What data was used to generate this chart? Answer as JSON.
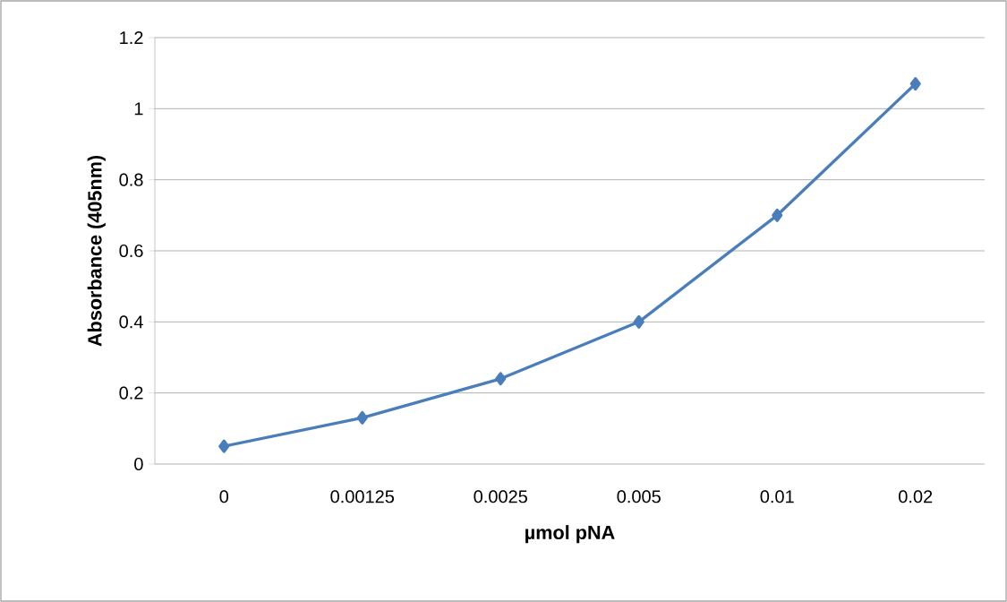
{
  "chart_data": {
    "type": "line",
    "xlabel": "µmol pNA",
    "ylabel": "Absorbance (405nm)",
    "categories": [
      "0",
      "0.00125",
      "0.0025",
      "0.005",
      "0.01",
      "0.02"
    ],
    "values": [
      0.05,
      0.13,
      0.24,
      0.4,
      0.7,
      1.07
    ],
    "color": "#4a7ebb",
    "marker": "diamond",
    "line_style": "solid",
    "ylim": [
      0,
      1.2
    ],
    "yticks": [
      0,
      0.2,
      0.4,
      0.6,
      0.8,
      1,
      1.2
    ],
    "grid": "y"
  }
}
